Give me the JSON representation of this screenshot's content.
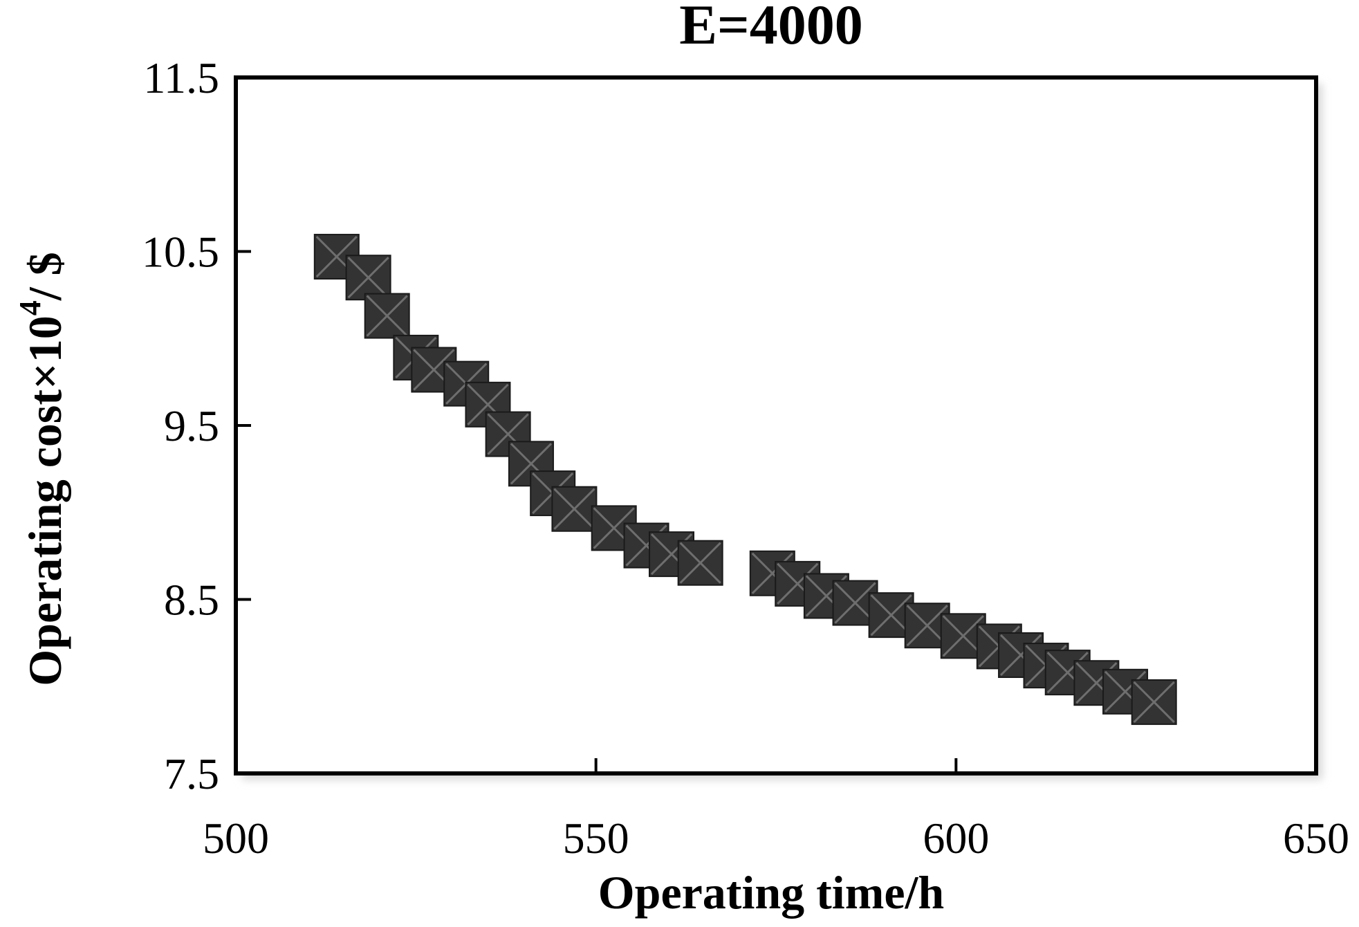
{
  "chart_data": {
    "type": "scatter",
    "title": "E=4000",
    "xlabel": "Operating time/h",
    "ylabel": {
      "main": "Operating cost×10",
      "superscript": "4",
      "suffix": "/ $"
    },
    "xlim": [
      500,
      650
    ],
    "ylim": [
      7.5,
      11.5
    ],
    "xticks": [
      "500",
      "550",
      "600",
      "650"
    ],
    "yticks": [
      "7.5",
      "8.5",
      "9.5",
      "10.5",
      "11.5"
    ],
    "grid": false,
    "legend": "none",
    "marker": "square-with-x",
    "colors": {
      "marker_fill": "#333333",
      "marker_cross": "#6e6e6e",
      "axis": "#000000"
    },
    "series": [
      {
        "x": [
          514.0,
          518.4,
          521.0,
          525.0,
          527.5,
          532.0,
          535.0,
          537.8,
          541.0,
          544.0,
          547.0,
          552.5,
          557.0,
          560.5,
          564.5,
          574.5,
          578.0,
          582.0,
          586.0,
          591.0,
          596.0,
          601.0,
          606.0,
          609.0,
          612.5,
          615.5,
          619.5,
          623.5,
          627.5
        ],
        "y": [
          10.47,
          10.35,
          10.13,
          9.89,
          9.82,
          9.74,
          9.62,
          9.45,
          9.28,
          9.11,
          9.02,
          8.91,
          8.81,
          8.76,
          8.71,
          8.65,
          8.59,
          8.52,
          8.48,
          8.41,
          8.35,
          8.29,
          8.23,
          8.18,
          8.12,
          8.08,
          8.02,
          7.97,
          7.91
        ]
      }
    ]
  }
}
